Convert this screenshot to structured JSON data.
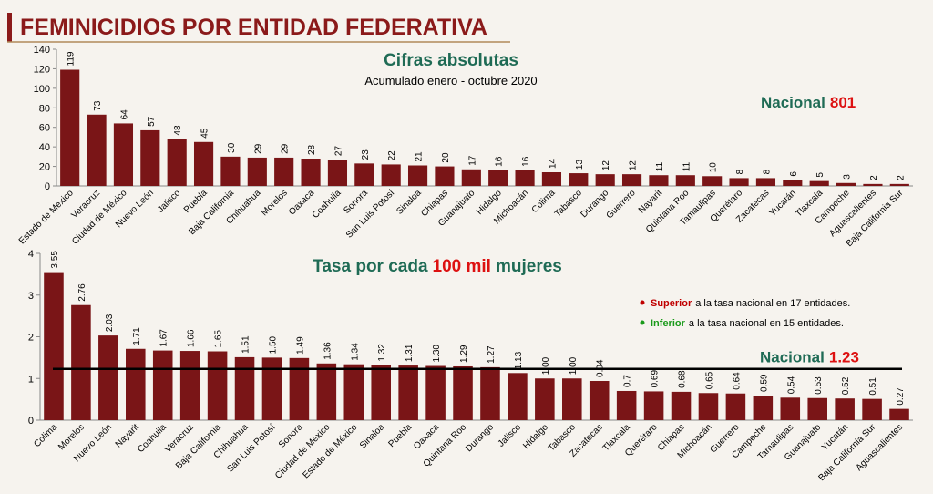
{
  "page_title": "FEMINICIDIOS POR ENTIDAD FEDERATIVA",
  "chart_data": [
    {
      "type": "bar",
      "title": "Cifras absolutas",
      "subtitle": "Acumulado enero - octubre 2020",
      "national": {
        "label": "Nacional",
        "value": 801
      },
      "color": "#7a1517",
      "categories": [
        "Estado de México",
        "Veracruz",
        "Ciudad de México",
        "Nuevo León",
        "Jalisco",
        "Puebla",
        "Baja California",
        "Chihuahua",
        "Morelos",
        "Oaxaca",
        "Coahuila",
        "Sonora",
        "San Luis Potosí",
        "Sinaloa",
        "Chiapas",
        "Guanajuato",
        "Hidalgo",
        "Michoacán",
        "Colima",
        "Tabasco",
        "Durango",
        "Guerrero",
        "Nayarit",
        "Quintana Roo",
        "Tamaulipas",
        "Querétaro",
        "Zacatecas",
        "Yucatán",
        "Tlaxcala",
        "Campeche",
        "Aguascalientes",
        "Baja California Sur"
      ],
      "values": [
        119,
        73,
        64,
        57,
        48,
        45,
        30,
        29,
        29,
        28,
        27,
        23,
        22,
        21,
        20,
        17,
        16,
        16,
        14,
        13,
        12,
        12,
        11,
        11,
        10,
        8,
        8,
        6,
        5,
        3,
        2,
        2
      ],
      "ylim": [
        0,
        140
      ],
      "yticks": [
        0,
        20,
        40,
        60,
        80,
        100,
        120,
        140
      ]
    },
    {
      "type": "bar",
      "title": [
        "Tasa por cada",
        "100 mil",
        "mujeres"
      ],
      "national": {
        "label": "Nacional",
        "value": 1.23
      },
      "notes": [
        {
          "bold": "Superior",
          "text": "a la tasa nacional en 17 entidades.",
          "color": "#c00000"
        },
        {
          "bold": "Inferior",
          "text": "a la tasa nacional en 15 entidades.",
          "color": "#1a9a1a"
        }
      ],
      "color": "#7a1517",
      "categories": [
        "Colima",
        "Morelos",
        "Nuevo León",
        "Nayarit",
        "Coahuila",
        "Veracruz",
        "Baja California",
        "Chihuahua",
        "San Luis Potosí",
        "Sonora",
        "Ciudad de México",
        "Estado de México",
        "Sinaloa",
        "Puebla",
        "Oaxaca",
        "Quintana Roo",
        "Durango",
        "Jalisco",
        "Hidalgo",
        "Tabasco",
        "Zacatecas",
        "Tlaxcala",
        "Querétaro",
        "Chiapas",
        "Michoacán",
        "Guerrero",
        "Campeche",
        "Tamaulipas",
        "Guanajuato",
        "Yucatán",
        "Baja California Sur",
        "Aguascalientes"
      ],
      "values": [
        3.55,
        2.76,
        2.03,
        1.71,
        1.67,
        1.66,
        1.65,
        1.51,
        1.5,
        1.49,
        1.36,
        1.34,
        1.32,
        1.31,
        1.3,
        1.29,
        1.27,
        1.13,
        1.0,
        1.0,
        0.94,
        0.7,
        0.69,
        0.68,
        0.65,
        0.64,
        0.59,
        0.54,
        0.53,
        0.52,
        0.51,
        0.27
      ],
      "value_labels": [
        "3.55",
        "2.76",
        "2.03",
        "1.71",
        "1.67",
        "1.66",
        "1.65",
        "1.51",
        "1.50",
        "1.49",
        "1.36",
        "1.34",
        "1.32",
        "1.31",
        "1.30",
        "1.29",
        "1.27",
        "1.13",
        "1.00",
        "1.00",
        "0.94",
        "0.7",
        "0.69",
        "0.68",
        "0.65",
        "0.64",
        "0.59",
        "0.54",
        "0.53",
        "0.52",
        "0.51",
        "0.27"
      ],
      "ylim": [
        0,
        4
      ],
      "yticks": [
        0,
        1,
        2,
        3,
        4
      ]
    }
  ]
}
